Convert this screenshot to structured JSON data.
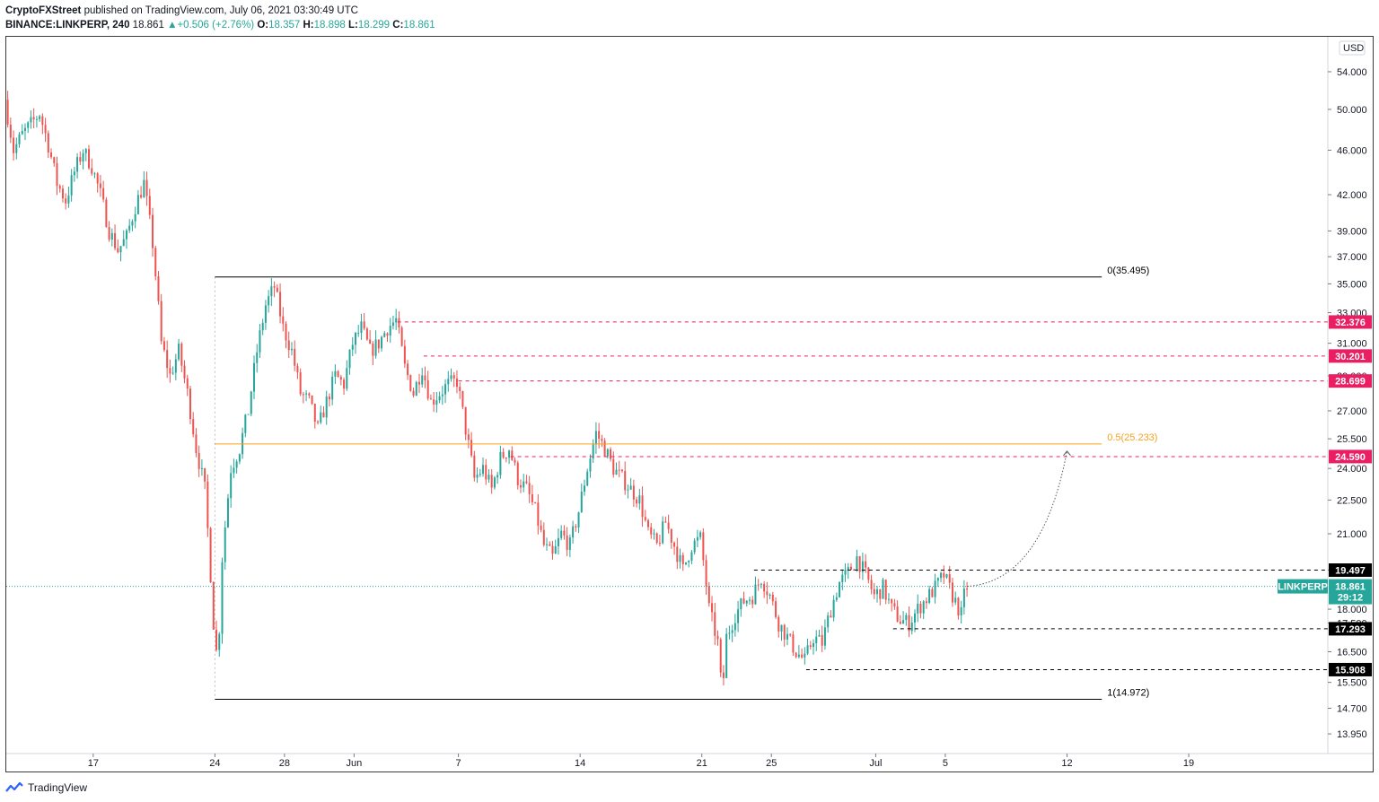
{
  "header": {
    "line1": {
      "author": "CryptoFXStreet",
      "text": "published on TradingView.com, July 06, 2021 03:30:49 UTC"
    },
    "line2": {
      "symbol": "BINANCE:LINKPERP, 240",
      "last": "18.861",
      "change": "+0.506 (+2.76%)",
      "o_label": "O:",
      "o": "18.357",
      "h_label": "H:",
      "h": "18.898",
      "l_label": "L:",
      "l": "18.299",
      "c_label": "C:",
      "c": "18.861"
    }
  },
  "footer": {
    "brand": "TradingView"
  },
  "colors": {
    "up": "#26a69a",
    "down": "#ef5350",
    "resistance": "#e91e63",
    "support": "#000000",
    "fib_mid": "#f7a01c",
    "fib_line": "#000000",
    "last_price": "#26a69a"
  },
  "chart_data": {
    "type": "candlestick",
    "symbol": "LINKPERP",
    "interval": "240",
    "currency": "USD",
    "y_scale": "log",
    "y_range": [
      13.4,
      58.0
    ],
    "x_range": [
      "2021-05-12",
      "2021-07-27"
    ],
    "y_ticks": [
      "54.000",
      "50.000",
      "46.000",
      "42.000",
      "39.000",
      "37.000",
      "35.000",
      "33.000",
      "31.000",
      "29.000",
      "27.000",
      "25.500",
      "24.000",
      "22.500",
      "21.000",
      "19.500",
      "18.000",
      "17.500",
      "16.500",
      "15.500",
      "14.700",
      "13.950"
    ],
    "x_ticks": [
      {
        "label": "17",
        "date": "2021-05-17"
      },
      {
        "label": "24",
        "date": "2021-05-24"
      },
      {
        "label": "28",
        "date": "2021-05-28"
      },
      {
        "label": "Jun",
        "date": "2021-06-01"
      },
      {
        "label": "7",
        "date": "2021-06-07"
      },
      {
        "label": "14",
        "date": "2021-06-14"
      },
      {
        "label": "21",
        "date": "2021-06-21"
      },
      {
        "label": "25",
        "date": "2021-06-25"
      },
      {
        "label": "Jul",
        "date": "2021-07-01"
      },
      {
        "label": "5",
        "date": "2021-07-05"
      },
      {
        "label": "12",
        "date": "2021-07-12"
      },
      {
        "label": "19",
        "date": "2021-07-19"
      }
    ],
    "path": [
      [
        "2021-05-12",
        51.0
      ],
      [
        "2021-05-12T12:00",
        46.0
      ],
      [
        "2021-05-13",
        47.5
      ],
      [
        "2021-05-13T12:00",
        48.5
      ],
      [
        "2021-05-14",
        49.6
      ],
      [
        "2021-05-14T12:00",
        46.5
      ],
      [
        "2021-05-15",
        43.0
      ],
      [
        "2021-05-15T12:00",
        41.5
      ],
      [
        "2021-05-16",
        44.0
      ],
      [
        "2021-05-16T12:00",
        46.0
      ],
      [
        "2021-05-17",
        44.5
      ],
      [
        "2021-05-17T12:00",
        42.0
      ],
      [
        "2021-05-18",
        39.0
      ],
      [
        "2021-05-18T12:00",
        37.5
      ],
      [
        "2021-05-19",
        38.5
      ],
      [
        "2021-05-19T12:00",
        41.0
      ],
      [
        "2021-05-20",
        43.0
      ],
      [
        "2021-05-20T12:00",
        38.0
      ],
      [
        "2021-05-21",
        31.0
      ],
      [
        "2021-05-21T12:00",
        29.0
      ],
      [
        "2021-05-22",
        30.5
      ],
      [
        "2021-05-22T12:00",
        28.0
      ],
      [
        "2021-05-23",
        25.0
      ],
      [
        "2021-05-23T12:00",
        23.0
      ],
      [
        "2021-05-24",
        17.5
      ],
      [
        "2021-05-24T06:00",
        16.0
      ],
      [
        "2021-05-24T12:00",
        20.0
      ],
      [
        "2021-05-25",
        24.0
      ],
      [
        "2021-05-25T12:00",
        25.0
      ],
      [
        "2021-05-26",
        27.0
      ],
      [
        "2021-05-26T12:00",
        30.5
      ],
      [
        "2021-05-27",
        33.5
      ],
      [
        "2021-05-27T12:00",
        34.8
      ],
      [
        "2021-05-28",
        32.0
      ],
      [
        "2021-05-28T12:00",
        30.5
      ],
      [
        "2021-05-29",
        28.0
      ],
      [
        "2021-05-29T12:00",
        27.5
      ],
      [
        "2021-05-30",
        26.0
      ],
      [
        "2021-05-30T12:00",
        27.5
      ],
      [
        "2021-05-31",
        29.0
      ],
      [
        "2021-05-31T12:00",
        28.5
      ],
      [
        "2021-06-01",
        31.0
      ],
      [
        "2021-06-01T12:00",
        32.0
      ],
      [
        "2021-06-02",
        30.5
      ],
      [
        "2021-06-02T12:00",
        31.0
      ],
      [
        "2021-06-03",
        32.0
      ],
      [
        "2021-06-03T12:00",
        32.5
      ],
      [
        "2021-06-04",
        29.5
      ],
      [
        "2021-06-04T12:00",
        28.0
      ],
      [
        "2021-06-05",
        29.5
      ],
      [
        "2021-06-05T12:00",
        27.5
      ],
      [
        "2021-06-06",
        28.0
      ],
      [
        "2021-06-06T12:00",
        28.5
      ],
      [
        "2021-06-07",
        28.7
      ],
      [
        "2021-06-07T12:00",
        26.0
      ],
      [
        "2021-06-08",
        23.5
      ],
      [
        "2021-06-08T12:00",
        24.0
      ],
      [
        "2021-06-09",
        23.0
      ],
      [
        "2021-06-09T12:00",
        24.5
      ],
      [
        "2021-06-10",
        25.0
      ],
      [
        "2021-06-10T12:00",
        23.5
      ],
      [
        "2021-06-11",
        23.0
      ],
      [
        "2021-06-11T12:00",
        22.0
      ],
      [
        "2021-06-12",
        20.5
      ],
      [
        "2021-06-12T12:00",
        20.0
      ],
      [
        "2021-06-13",
        21.0
      ],
      [
        "2021-06-13T12:00",
        20.5
      ],
      [
        "2021-06-14",
        22.0
      ],
      [
        "2021-06-14T12:00",
        24.0
      ],
      [
        "2021-06-15",
        25.8
      ],
      [
        "2021-06-15T12:00",
        25.0
      ],
      [
        "2021-06-16",
        24.0
      ],
      [
        "2021-06-16T12:00",
        23.5
      ],
      [
        "2021-06-17",
        23.0
      ],
      [
        "2021-06-17T12:00",
        22.5
      ],
      [
        "2021-06-18",
        21.0
      ],
      [
        "2021-06-18T12:00",
        20.5
      ],
      [
        "2021-06-19",
        21.5
      ],
      [
        "2021-06-19T12:00",
        20.5
      ],
      [
        "2021-06-20",
        19.5
      ],
      [
        "2021-06-20T12:00",
        20.5
      ],
      [
        "2021-06-21",
        20.8
      ],
      [
        "2021-06-21T12:00",
        18.0
      ],
      [
        "2021-06-22",
        16.8
      ],
      [
        "2021-06-22T06:00",
        15.0
      ],
      [
        "2021-06-22T12:00",
        17.0
      ],
      [
        "2021-06-23",
        17.8
      ],
      [
        "2021-06-23T12:00",
        18.3
      ],
      [
        "2021-06-24",
        18.5
      ],
      [
        "2021-06-24T12:00",
        19.2
      ],
      [
        "2021-06-25",
        18.5
      ],
      [
        "2021-06-25T12:00",
        17.5
      ],
      [
        "2021-06-26",
        17.0
      ],
      [
        "2021-06-26T12:00",
        16.5
      ],
      [
        "2021-06-27",
        16.2
      ],
      [
        "2021-06-27T12:00",
        17.0
      ],
      [
        "2021-06-28",
        16.8
      ],
      [
        "2021-06-28T12:00",
        18.0
      ],
      [
        "2021-06-29",
        19.0
      ],
      [
        "2021-06-29T12:00",
        19.4
      ],
      [
        "2021-06-30",
        20.0
      ],
      [
        "2021-06-30T12:00",
        19.3
      ],
      [
        "2021-07-01",
        18.5
      ],
      [
        "2021-07-01T12:00",
        18.8
      ],
      [
        "2021-07-02",
        18.0
      ],
      [
        "2021-07-02T12:00",
        17.6
      ],
      [
        "2021-07-03",
        17.5
      ],
      [
        "2021-07-03T12:00",
        18.0
      ],
      [
        "2021-07-04",
        18.4
      ],
      [
        "2021-07-04T12:00",
        18.8
      ],
      [
        "2021-07-05",
        19.3
      ],
      [
        "2021-07-05T12:00",
        18.5
      ],
      [
        "2021-07-06",
        17.8
      ],
      [
        "2021-07-06T06:00",
        18.861
      ]
    ],
    "last_price": {
      "value": 18.861,
      "label": "LINKPERP",
      "price_text": "18.861",
      "countdown": "29:12"
    },
    "fibonacci": {
      "start_date": "2021-05-24",
      "end_date": "2021-07-14",
      "levels": [
        {
          "label": "0(35.495)",
          "value": 35.495
        },
        {
          "label": "0.5(25.233)",
          "value": 25.233
        },
        {
          "label": "1(14.972)",
          "value": 14.972
        }
      ]
    },
    "resistance_levels": [
      {
        "value": 32.376,
        "label": "32.376",
        "start_date": "2021-06-03T12:00"
      },
      {
        "value": 30.201,
        "label": "30.201",
        "start_date": "2021-06-05"
      },
      {
        "value": 28.699,
        "label": "28.699",
        "start_date": "2021-06-07"
      },
      {
        "value": 24.59,
        "label": "24.590",
        "start_date": "2021-06-10"
      }
    ],
    "support_levels": [
      {
        "value": 19.497,
        "label": "19.497",
        "start_date": "2021-06-24"
      },
      {
        "value": 17.293,
        "label": "17.293",
        "start_date": "2021-07-02"
      },
      {
        "value": 15.908,
        "label": "15.908",
        "start_date": "2021-06-27"
      }
    ],
    "projection": {
      "from_date": "2021-07-06T06:00",
      "from_value": 18.861,
      "to_date": "2021-07-12",
      "to_value": 25.233
    }
  }
}
